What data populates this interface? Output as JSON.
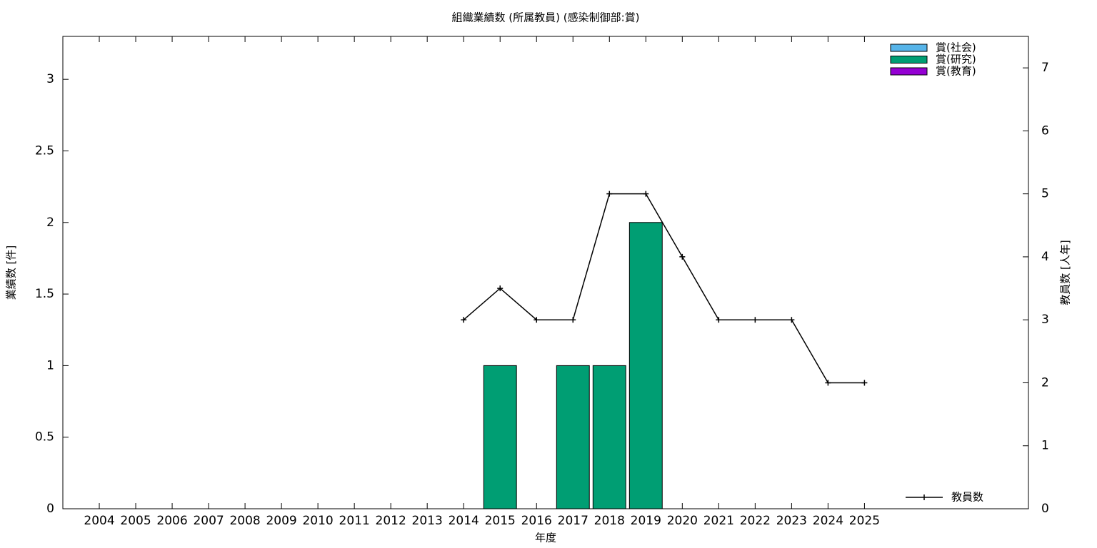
{
  "chart_data": {
    "type": "bar",
    "title": "組織業績数 (所属教員) (感染制御部:賞)",
    "x_label": "年度",
    "y_label": "業績数 [件]",
    "y2_label": "教員数 [人年]",
    "categories": [
      "2004",
      "2005",
      "2006",
      "2007",
      "2008",
      "2009",
      "2010",
      "2011",
      "2012",
      "2013",
      "2014",
      "2015",
      "2016",
      "2017",
      "2018",
      "2019",
      "2020",
      "2021",
      "2022",
      "2023",
      "2024",
      "2025"
    ],
    "stacked": true,
    "series": [
      {
        "name": "賞(社会)",
        "color": "#56b4e9",
        "values": [
          0,
          0,
          0,
          0,
          0,
          0,
          0,
          0,
          0,
          0,
          0,
          0,
          0,
          0,
          0,
          0,
          0,
          0,
          0,
          0,
          0,
          0
        ]
      },
      {
        "name": "賞(研究)",
        "color": "#009e73",
        "values": [
          0,
          0,
          0,
          0,
          0,
          0,
          0,
          0,
          0,
          0,
          0,
          1,
          0,
          1,
          1,
          2,
          0,
          0,
          0,
          0,
          0,
          0
        ]
      },
      {
        "name": "賞(教育)",
        "color": "#9400d3",
        "values": [
          0,
          0,
          0,
          0,
          0,
          0,
          0,
          0,
          0,
          0,
          0,
          0,
          0,
          0,
          0,
          0,
          0,
          0,
          0,
          0,
          0,
          0
        ]
      },
      {
        "name": "教員数",
        "type": "line",
        "axis": "y2",
        "color": "#000000",
        "values": [
          null,
          null,
          null,
          null,
          null,
          null,
          null,
          null,
          null,
          null,
          3,
          3.5,
          3,
          3,
          5,
          5,
          4,
          3,
          3,
          3,
          2,
          2
        ]
      }
    ],
    "ylim": [
      0,
      3.3
    ],
    "yticks": [
      0,
      0.5,
      1,
      1.5,
      2,
      2.5,
      3
    ],
    "y2lim": [
      0,
      7.5
    ],
    "y2ticks": [
      0,
      1,
      2,
      3,
      4,
      5,
      6,
      7
    ],
    "legend": "top-right",
    "line_legend": "bottom-right"
  }
}
